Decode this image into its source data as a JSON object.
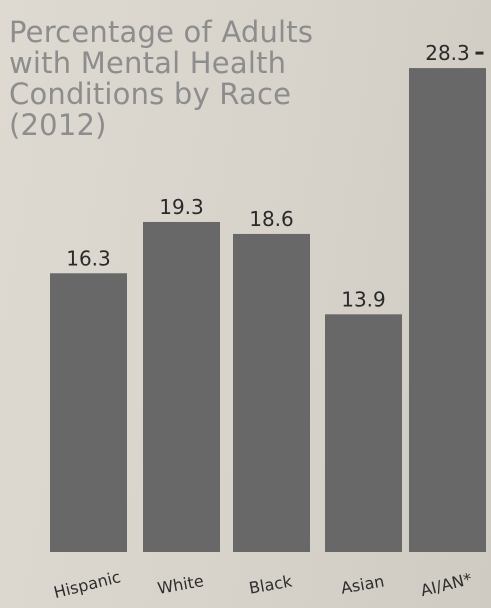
{
  "chart_data": {
    "type": "bar",
    "title": "Percentage of Adults with Mental Health Conditions by Race (2012)",
    "categories": [
      "Hispanic",
      "White",
      "Black",
      "Asian",
      "AI/AN*"
    ],
    "values": [
      16.3,
      19.3,
      18.6,
      13.9,
      28.3
    ],
    "value_labels": [
      "16.3",
      "19.3",
      "18.6",
      "13.9",
      "28.3"
    ],
    "xlabel": "",
    "ylabel": "",
    "ylim": [
      0,
      30
    ],
    "grid": false,
    "legend": "none",
    "bar_color": "#686868"
  }
}
